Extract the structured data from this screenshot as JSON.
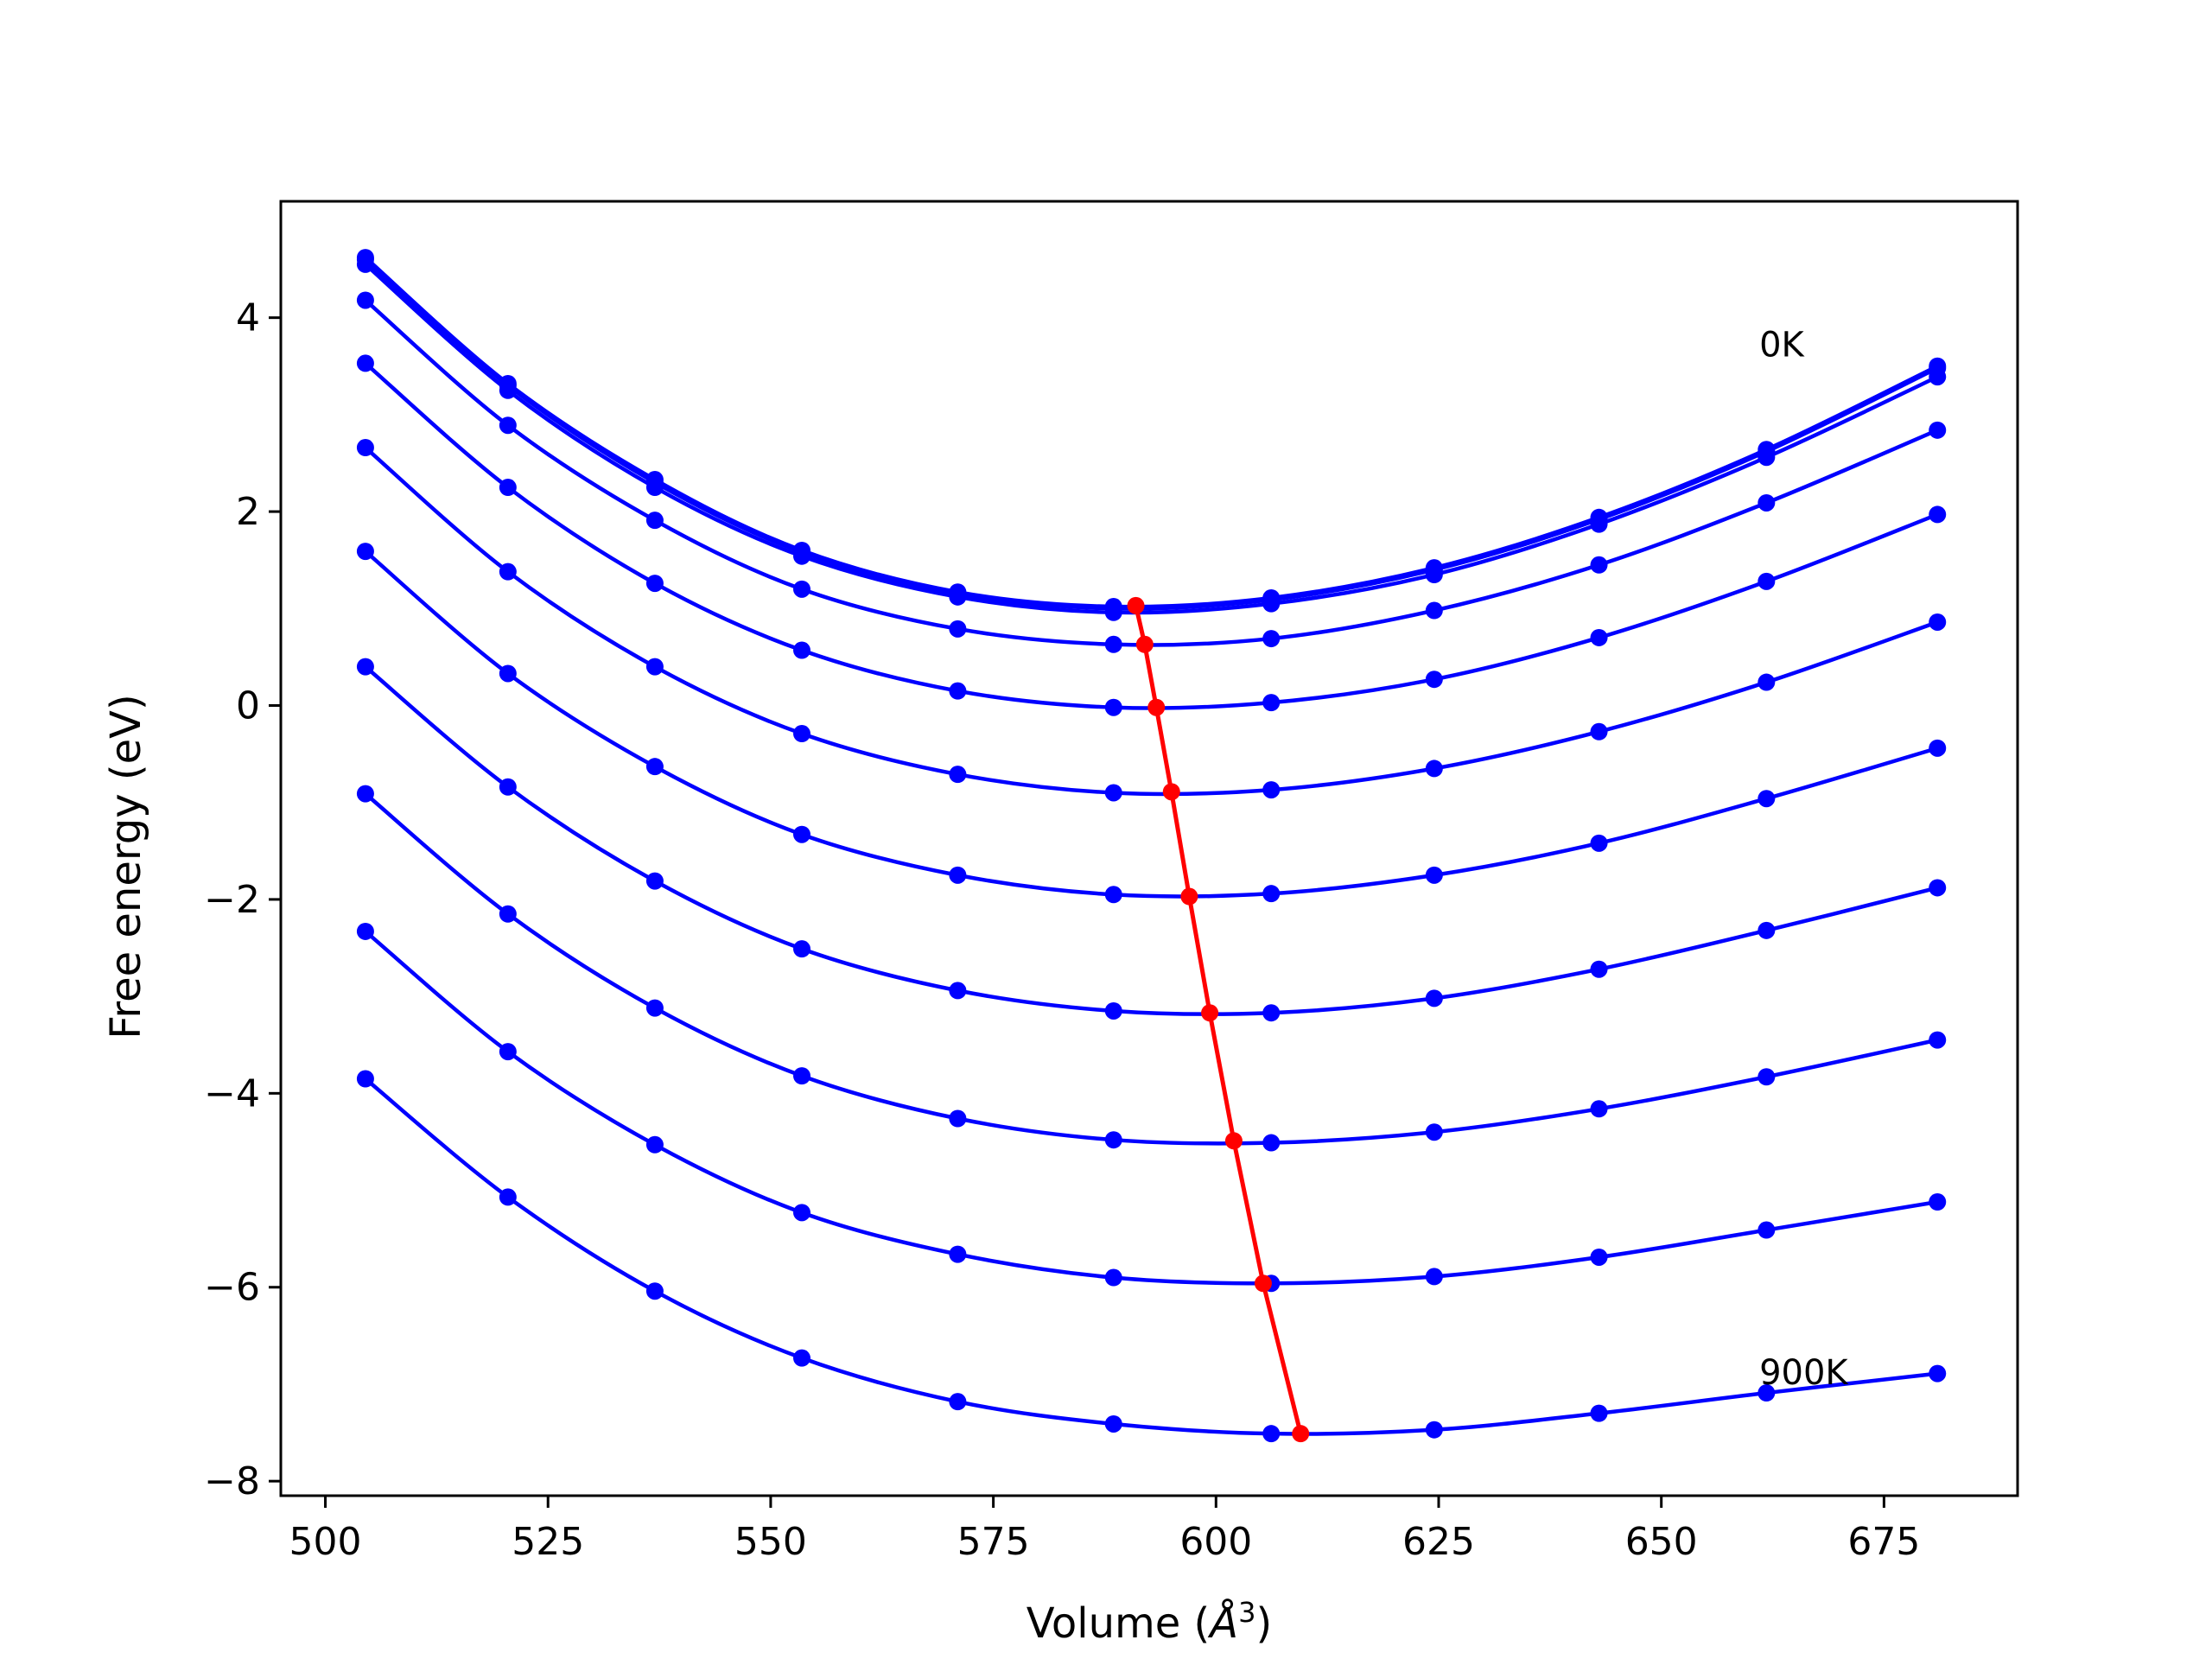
{
  "chart_data": {
    "type": "line",
    "xlabel_prefix": "Volume (",
    "xlabel_symbol": "Å",
    "xlabel_exp": "3",
    "xlabel_suffix": ")",
    "ylabel": "Free energy (eV)",
    "xlim": [
      495,
      690
    ],
    "ylim": [
      -8.15,
      5.2
    ],
    "xticks": [
      500,
      525,
      550,
      575,
      600,
      625,
      650,
      675
    ],
    "yticks": [
      -8,
      -6,
      -4,
      -2,
      0,
      2,
      4
    ],
    "grid": false,
    "colors": {
      "series": "#0000ff",
      "minimum": "#ff0000"
    },
    "x": [
      504.5,
      520.5,
      537.0,
      553.5,
      571.0,
      588.5,
      606.2,
      624.5,
      643.0,
      661.8,
      681.0
    ],
    "series": [
      {
        "values": [
          4.62,
          3.32,
          2.33,
          1.6,
          1.17,
          1.02,
          1.11,
          1.42,
          1.94,
          2.64,
          3.5
        ]
      },
      {
        "values": [
          4.6,
          3.3,
          2.3,
          1.58,
          1.15,
          1.0,
          1.09,
          1.4,
          1.92,
          2.62,
          3.48
        ]
      },
      {
        "values": [
          4.55,
          3.25,
          2.25,
          1.54,
          1.12,
          0.96,
          1.05,
          1.35,
          1.87,
          2.56,
          3.39
        ]
      },
      {
        "values": [
          4.18,
          2.89,
          1.91,
          1.2,
          0.79,
          0.63,
          0.69,
          0.98,
          1.45,
          2.09,
          2.84
        ]
      },
      {
        "values": [
          3.53,
          2.25,
          1.26,
          0.57,
          0.15,
          -0.02,
          0.03,
          0.27,
          0.7,
          1.28,
          1.97
        ]
      },
      {
        "values": [
          2.66,
          1.38,
          0.4,
          -0.29,
          -0.71,
          -0.9,
          -0.87,
          -0.65,
          -0.27,
          0.24,
          0.86
        ]
      },
      {
        "values": [
          1.59,
          0.33,
          -0.63,
          -1.33,
          -1.75,
          -1.95,
          -1.94,
          -1.75,
          -1.42,
          -0.96,
          -0.44
        ]
      },
      {
        "values": [
          0.4,
          -0.84,
          -1.81,
          -2.51,
          -2.94,
          -3.15,
          -3.17,
          -3.02,
          -2.72,
          -2.32,
          -1.88
        ]
      },
      {
        "values": [
          -0.91,
          -2.15,
          -3.12,
          -3.82,
          -4.26,
          -4.48,
          -4.51,
          -4.4,
          -4.16,
          -3.83,
          -3.45
        ]
      },
      {
        "values": [
          -2.33,
          -3.57,
          -4.53,
          -5.23,
          -5.66,
          -5.9,
          -5.96,
          -5.89,
          -5.69,
          -5.41,
          -5.12
        ]
      },
      {
        "values": [
          -3.85,
          -5.07,
          -6.04,
          -6.73,
          -7.18,
          -7.41,
          -7.51,
          -7.47,
          -7.3,
          -7.09,
          -6.89
        ]
      }
    ],
    "minimum": {
      "x": [
        591.0,
        592.0,
        593.3,
        595.0,
        597.0,
        599.3,
        602.0,
        605.3,
        609.5
      ],
      "y": [
        1.03,
        0.63,
        -0.02,
        -0.89,
        -1.97,
        -3.17,
        -4.49,
        -5.96,
        -7.51
      ]
    },
    "annotations": [
      {
        "text": "0K",
        "x": 661,
        "y": 3.6
      },
      {
        "text": "900K",
        "x": 661,
        "y": -7.0
      }
    ]
  }
}
